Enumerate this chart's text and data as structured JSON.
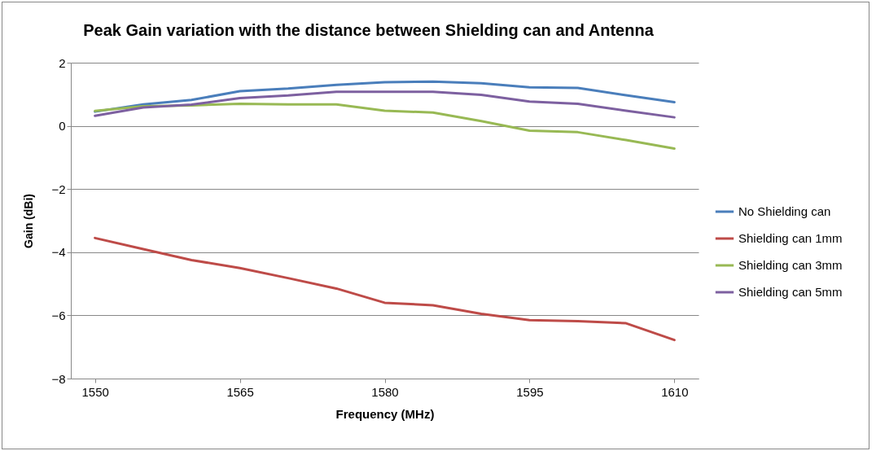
{
  "chart_data": {
    "type": "line",
    "title": "Peak Gain variation with the distance between Shielding can and Antenna",
    "xlabel": "Frequency  (MHz)",
    "ylabel": "Gain  (dBi)",
    "x": [
      1550,
      1555,
      1560,
      1565,
      1570,
      1575,
      1580,
      1585,
      1590,
      1595,
      1600,
      1605,
      1610
    ],
    "series": [
      {
        "name": "No Shielding can",
        "color": "#4a7ebb",
        "values": [
          0.45,
          0.68,
          0.82,
          1.1,
          1.18,
          1.3,
          1.38,
          1.4,
          1.35,
          1.22,
          1.2,
          0.97,
          0.75
        ]
      },
      {
        "name": "Shielding can 1mm",
        "color": "#be4b48",
        "values": [
          -3.55,
          -3.9,
          -4.25,
          -4.5,
          -4.82,
          -5.15,
          -5.6,
          -5.68,
          -5.95,
          -6.15,
          -6.18,
          -6.25,
          -6.78
        ]
      },
      {
        "name": "Shielding can 3mm",
        "color": "#98b954",
        "values": [
          0.47,
          0.62,
          0.65,
          0.7,
          0.68,
          0.68,
          0.48,
          0.42,
          0.15,
          -0.15,
          -0.2,
          -0.45,
          -0.72
        ]
      },
      {
        "name": "Shielding can 5mm",
        "color": "#7d60a0",
        "values": [
          0.32,
          0.58,
          0.67,
          0.88,
          0.96,
          1.08,
          1.08,
          1.08,
          0.98,
          0.77,
          0.7,
          0.48,
          0.27
        ]
      }
    ],
    "xlim": [
      1547.5,
      1612.5
    ],
    "xticks": [
      1550,
      1565,
      1580,
      1595,
      1610
    ],
    "ylim": [
      -8,
      2
    ],
    "yticks": [
      -8,
      -6,
      -4,
      -2,
      0,
      2
    ],
    "grid": "y",
    "legend": "right",
    "marker": "none",
    "line_style": "solid"
  }
}
